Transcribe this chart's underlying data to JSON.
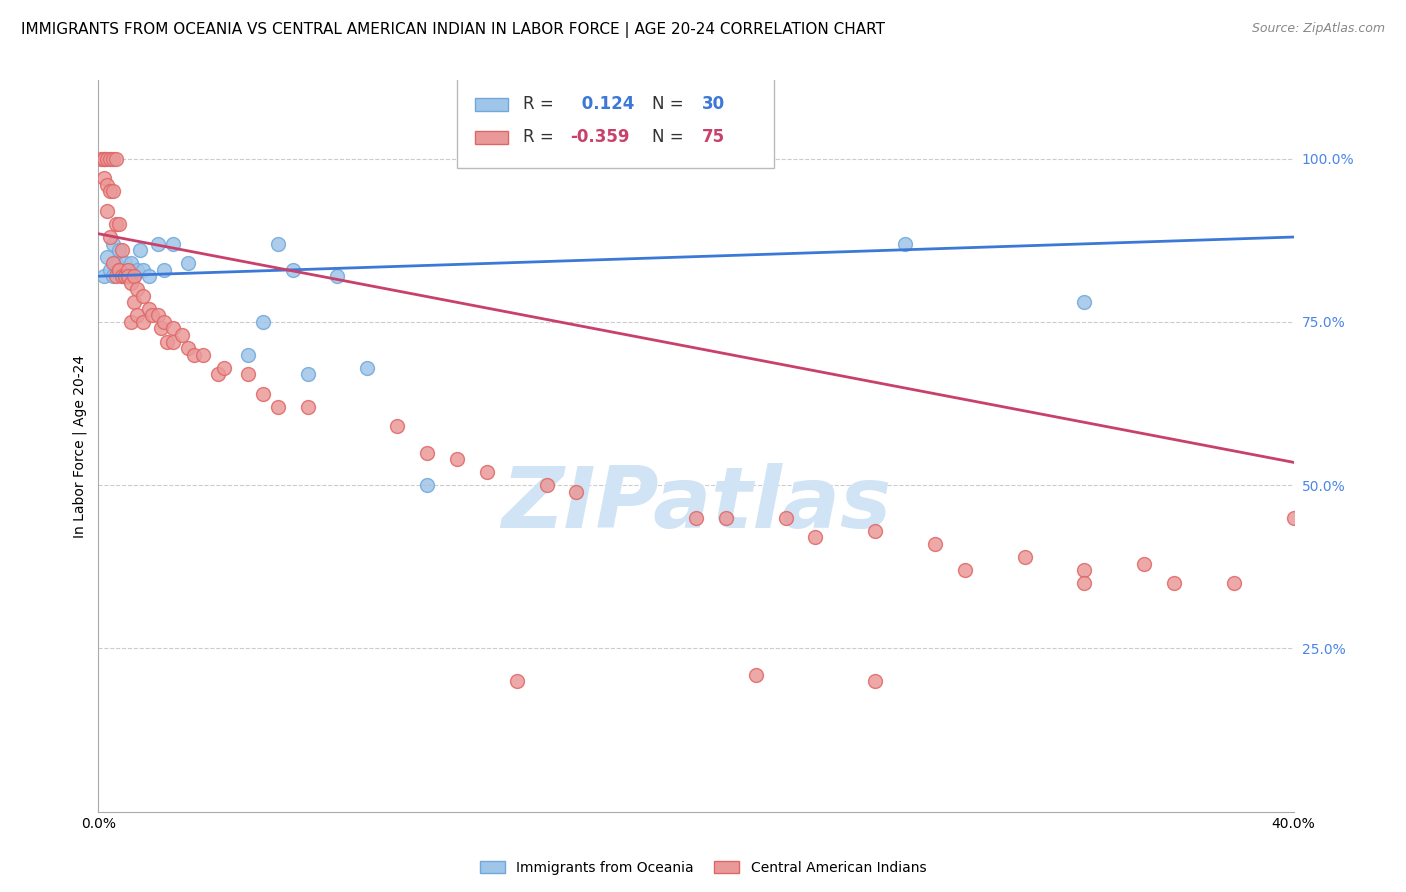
{
  "title": "IMMIGRANTS FROM OCEANIA VS CENTRAL AMERICAN INDIAN IN LABOR FORCE | AGE 20-24 CORRELATION CHART",
  "source": "Source: ZipAtlas.com",
  "ylabel": "In Labor Force | Age 20-24",
  "xlabel_ticks": [
    "0.0%",
    "",
    "",
    "",
    "40.0%"
  ],
  "xlabel_vals": [
    0.0,
    0.1,
    0.2,
    0.3,
    0.4
  ],
  "xlim": [
    0.0,
    0.4
  ],
  "ylim": [
    0.0,
    1.12
  ],
  "yticks": [
    0.25,
    0.5,
    0.75,
    1.0
  ],
  "ytick_labels": [
    "25.0%",
    "50.0%",
    "75.0%",
    "100.0%"
  ],
  "R_blue": 0.124,
  "N_blue": 30,
  "R_pink": -0.359,
  "N_pink": 75,
  "blue_scatter_color": "#9fc5e8",
  "blue_edge_color": "#6fa8dc",
  "pink_scatter_color": "#ea9999",
  "pink_edge_color": "#e06666",
  "blue_line_color": "#3c78d8",
  "pink_line_color": "#c9406a",
  "right_tick_color": "#4a86e8",
  "watermark": "ZIPatlas",
  "watermark_color": "#d0e4f5",
  "legend_label_blue": "Immigrants from Oceania",
  "legend_label_pink": "Central American Indians",
  "blue_scatter": [
    [
      0.002,
      0.82
    ],
    [
      0.003,
      0.85
    ],
    [
      0.004,
      0.83
    ],
    [
      0.005,
      0.82
    ],
    [
      0.005,
      0.87
    ],
    [
      0.006,
      0.84
    ],
    [
      0.007,
      0.86
    ],
    [
      0.008,
      0.82
    ],
    [
      0.009,
      0.84
    ],
    [
      0.01,
      0.83
    ],
    [
      0.011,
      0.84
    ],
    [
      0.012,
      0.82
    ],
    [
      0.013,
      0.83
    ],
    [
      0.014,
      0.86
    ],
    [
      0.015,
      0.83
    ],
    [
      0.017,
      0.82
    ],
    [
      0.02,
      0.87
    ],
    [
      0.022,
      0.83
    ],
    [
      0.025,
      0.87
    ],
    [
      0.03,
      0.84
    ],
    [
      0.05,
      0.7
    ],
    [
      0.055,
      0.75
    ],
    [
      0.06,
      0.87
    ],
    [
      0.065,
      0.83
    ],
    [
      0.07,
      0.67
    ],
    [
      0.08,
      0.82
    ],
    [
      0.09,
      0.68
    ],
    [
      0.11,
      0.5
    ],
    [
      0.27,
      0.87
    ],
    [
      0.33,
      0.78
    ]
  ],
  "pink_scatter": [
    [
      0.001,
      1.0
    ],
    [
      0.002,
      1.0
    ],
    [
      0.002,
      0.97
    ],
    [
      0.002,
      1.0
    ],
    [
      0.003,
      1.0
    ],
    [
      0.003,
      0.92
    ],
    [
      0.003,
      0.96
    ],
    [
      0.004,
      1.0
    ],
    [
      0.004,
      0.88
    ],
    [
      0.004,
      0.95
    ],
    [
      0.005,
      1.0
    ],
    [
      0.005,
      0.84
    ],
    [
      0.005,
      0.95
    ],
    [
      0.006,
      1.0
    ],
    [
      0.006,
      0.82
    ],
    [
      0.006,
      0.9
    ],
    [
      0.007,
      0.9
    ],
    [
      0.007,
      0.83
    ],
    [
      0.007,
      0.83
    ],
    [
      0.008,
      0.86
    ],
    [
      0.008,
      0.82
    ],
    [
      0.009,
      0.82
    ],
    [
      0.009,
      0.82
    ],
    [
      0.01,
      0.82
    ],
    [
      0.01,
      0.83
    ],
    [
      0.01,
      0.82
    ],
    [
      0.011,
      0.81
    ],
    [
      0.011,
      0.75
    ],
    [
      0.012,
      0.82
    ],
    [
      0.012,
      0.78
    ],
    [
      0.013,
      0.8
    ],
    [
      0.013,
      0.76
    ],
    [
      0.015,
      0.79
    ],
    [
      0.015,
      0.75
    ],
    [
      0.017,
      0.77
    ],
    [
      0.018,
      0.76
    ],
    [
      0.02,
      0.76
    ],
    [
      0.021,
      0.74
    ],
    [
      0.022,
      0.75
    ],
    [
      0.023,
      0.72
    ],
    [
      0.025,
      0.74
    ],
    [
      0.025,
      0.72
    ],
    [
      0.028,
      0.73
    ],
    [
      0.03,
      0.71
    ],
    [
      0.032,
      0.7
    ],
    [
      0.035,
      0.7
    ],
    [
      0.04,
      0.67
    ],
    [
      0.042,
      0.68
    ],
    [
      0.05,
      0.67
    ],
    [
      0.055,
      0.64
    ],
    [
      0.06,
      0.62
    ],
    [
      0.07,
      0.62
    ],
    [
      0.1,
      0.59
    ],
    [
      0.11,
      0.55
    ],
    [
      0.12,
      0.54
    ],
    [
      0.13,
      0.52
    ],
    [
      0.15,
      0.5
    ],
    [
      0.16,
      0.49
    ],
    [
      0.2,
      0.45
    ],
    [
      0.21,
      0.45
    ],
    [
      0.23,
      0.45
    ],
    [
      0.24,
      0.42
    ],
    [
      0.26,
      0.43
    ],
    [
      0.28,
      0.41
    ],
    [
      0.29,
      0.37
    ],
    [
      0.31,
      0.39
    ],
    [
      0.33,
      0.37
    ],
    [
      0.35,
      0.38
    ],
    [
      0.38,
      0.35
    ],
    [
      0.14,
      0.2
    ],
    [
      0.22,
      0.21
    ],
    [
      0.26,
      0.2
    ],
    [
      0.4,
      0.45
    ],
    [
      0.33,
      0.35
    ],
    [
      0.36,
      0.35
    ]
  ],
  "title_fontsize": 11,
  "source_fontsize": 9,
  "axis_label_fontsize": 10,
  "tick_fontsize": 10,
  "legend_fontsize": 12
}
